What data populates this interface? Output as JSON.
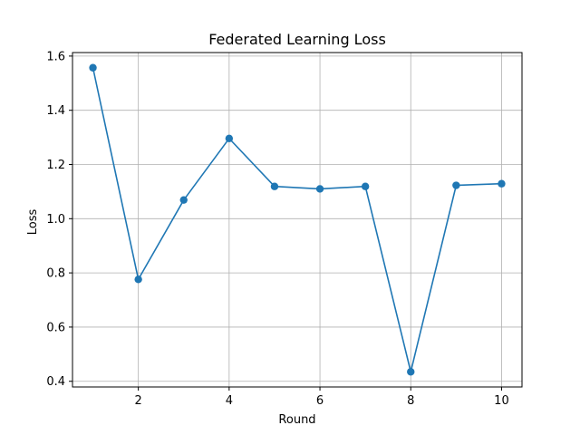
{
  "chart_data": {
    "type": "line",
    "title": "Federated Learning Loss",
    "xlabel": "Round",
    "ylabel": "Loss",
    "x": [
      1,
      2,
      3,
      4,
      5,
      6,
      7,
      8,
      9,
      10
    ],
    "series": [
      {
        "values": [
          1.557,
          0.776,
          1.069,
          1.296,
          1.119,
          1.11,
          1.119,
          0.435,
          1.123,
          1.129
        ]
      }
    ],
    "xlim": [
      0.55,
      10.45
    ],
    "ylim": [
      0.379,
      1.613
    ],
    "xticks": [
      2,
      4,
      6,
      8,
      10
    ],
    "xtick_labels": [
      "2",
      "4",
      "6",
      "8",
      "10"
    ],
    "yticks": [
      0.4,
      0.6,
      0.8,
      1.0,
      1.2,
      1.4,
      1.6
    ],
    "ytick_labels": [
      "0.4",
      "0.6",
      "0.8",
      "1.0",
      "1.2",
      "1.4",
      "1.6"
    ],
    "grid": true,
    "marker": "circle",
    "line_color": "#1f77b4"
  }
}
